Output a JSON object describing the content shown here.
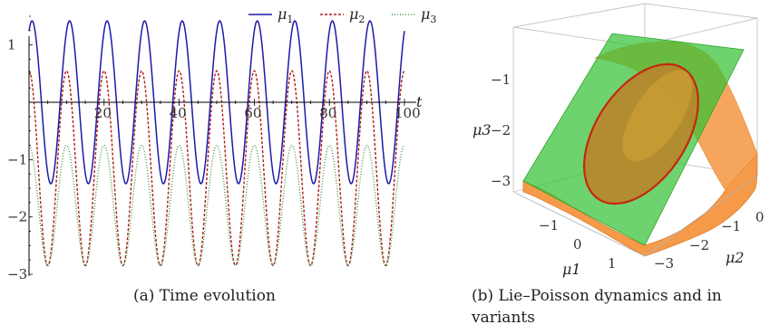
{
  "captions": {
    "left": "(a)  Time evolution",
    "right_line1": "(b)  Lie–Poisson dynamics and in",
    "right_line2": "variants"
  },
  "colors": {
    "mu1": "#1b1baa",
    "mu2": "#b11a1a",
    "mu3": "#3f9a3f",
    "plane": "#3cbf3c",
    "surface": "#f79d4c",
    "ellipse_fill": "#b8862b",
    "ellipse_stroke": "#c0280f",
    "box": "#bbbbbb"
  },
  "chart_data": [
    {
      "type": "line",
      "xlabel": "t",
      "ylabel": "",
      "xlim": [
        0,
        100
      ],
      "ylim": [
        -3,
        1.5
      ],
      "xticks": [
        20,
        40,
        60,
        80,
        100
      ],
      "yticks": [
        1,
        -1,
        -2,
        -3
      ],
      "xtick_labels": [
        "20",
        "40",
        "60",
        "80",
        "100"
      ],
      "ytick_labels": [
        "1",
        "−1",
        "−2",
        "−3"
      ],
      "legend_position": "top-right",
      "series": [
        {
          "name": "μ1",
          "label_base": "μ",
          "label_sub": "1",
          "style": "solid",
          "period": 10.0,
          "min": -1.42,
          "max": 1.42,
          "start": 0,
          "phase": 0.17
        },
        {
          "name": "μ2",
          "label_base": "μ",
          "label_sub": "2",
          "style": "dashed",
          "period": 10.0,
          "min": -2.85,
          "max": 0.55,
          "start": -2.85,
          "phase": 0.5
        },
        {
          "name": "μ3",
          "label_base": "μ",
          "label_sub": "3",
          "style": "dotted",
          "period": 10.0,
          "min": -2.85,
          "max": -0.75,
          "start": -0.75,
          "phase": 0.0
        }
      ]
    },
    {
      "type": "surface3d",
      "xlabel": "μ1",
      "ylabel": "μ2",
      "zlabel": "μ3",
      "xticks": [
        -1,
        0,
        1
      ],
      "yticks": [
        -3,
        -2,
        -1,
        0
      ],
      "zticks": [
        -1,
        -2,
        -3
      ],
      "xtick_labels": [
        "−1",
        "0",
        "1"
      ],
      "ytick_labels": [
        "−3",
        "−2",
        "−1",
        "0"
      ],
      "ztick_labels": [
        "−1",
        "−2",
        "−3"
      ],
      "surfaces": [
        "plane",
        "parabolic surface",
        "closed orbit (intersection curve)"
      ]
    }
  ]
}
